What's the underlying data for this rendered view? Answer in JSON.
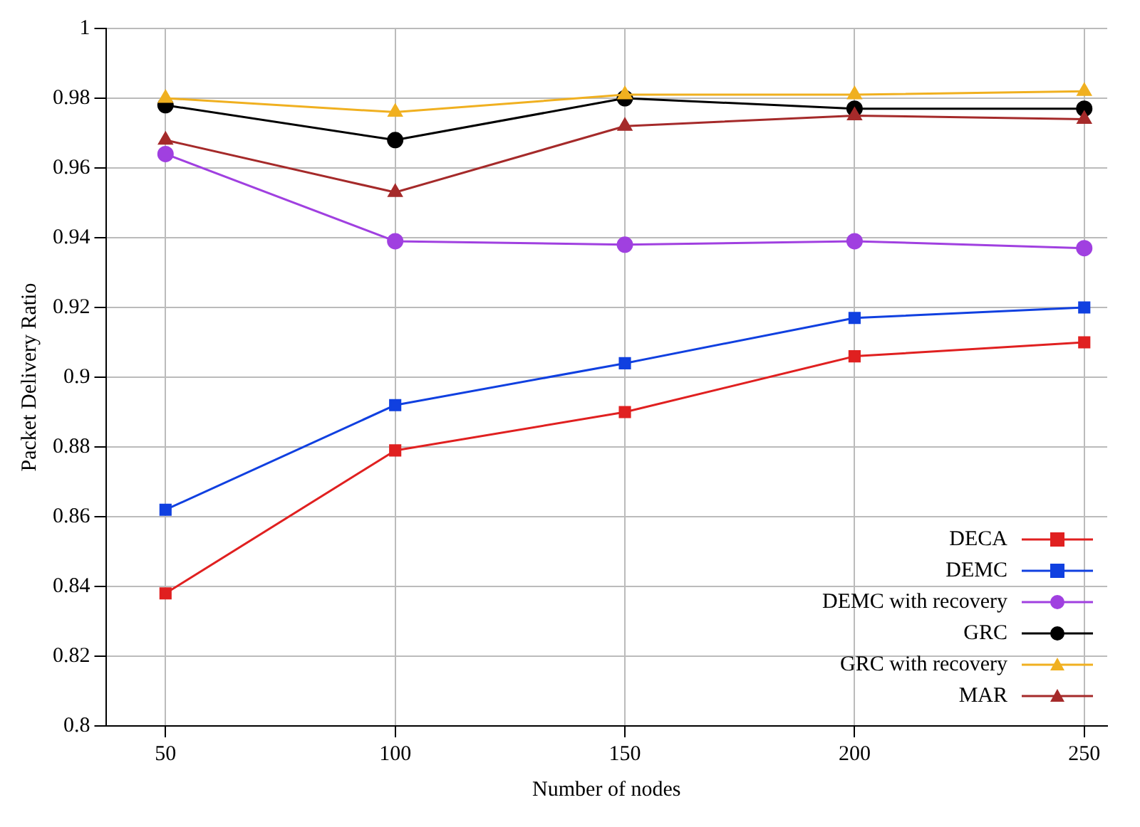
{
  "chart_data": {
    "type": "line",
    "xlabel": "Number of nodes",
    "ylabel": "Packet Delivery Ratio",
    "x": [
      50,
      100,
      150,
      200,
      250
    ],
    "xlim": [
      37,
      255
    ],
    "xticks": [
      50,
      100,
      150,
      200,
      250
    ],
    "ylim": [
      0.8,
      1
    ],
    "yticks": [
      0.8,
      0.82,
      0.84,
      0.86,
      0.88,
      0.9,
      0.92,
      0.94,
      0.96,
      0.98,
      1
    ],
    "grid": true,
    "legend": "bottom right",
    "line_style": "solid",
    "series": [
      {
        "name": "DECA",
        "color": "#e02020",
        "marker": "square",
        "values": [
          0.838,
          0.879,
          0.89,
          0.906,
          0.91
        ]
      },
      {
        "name": "DEMC",
        "color": "#1040e0",
        "marker": "square",
        "values": [
          0.862,
          0.892,
          0.904,
          0.917,
          0.92
        ]
      },
      {
        "name": "DEMC with recovery",
        "color": "#a040e0",
        "marker": "circle",
        "values": [
          0.964,
          0.939,
          0.938,
          0.939,
          0.937
        ]
      },
      {
        "name": "GRC",
        "color": "#000000",
        "marker": "circle",
        "values": [
          0.978,
          0.968,
          0.98,
          0.977,
          0.977
        ]
      },
      {
        "name": "GRC with recovery",
        "color": "#f0b020",
        "marker": "triangle",
        "values": [
          0.98,
          0.976,
          0.981,
          0.981,
          0.982
        ]
      },
      {
        "name": "MAR",
        "color": "#a52a2a",
        "marker": "triangle",
        "values": [
          0.968,
          0.953,
          0.972,
          0.975,
          0.974
        ]
      }
    ]
  }
}
